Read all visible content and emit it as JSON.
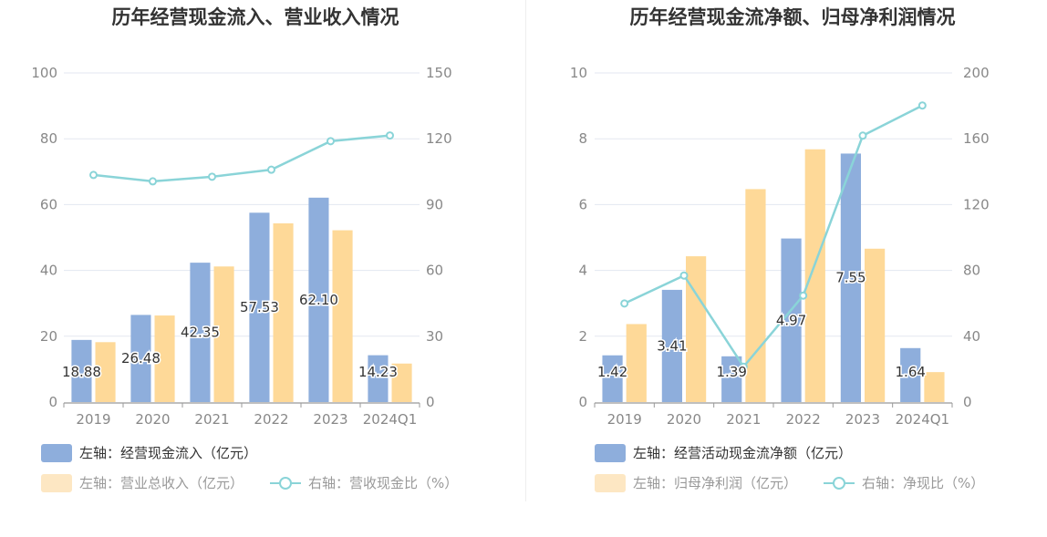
{
  "chart_data": [
    {
      "type": "bar",
      "title": "历年经营现金流入、营业收入情况",
      "categories": [
        "2019",
        "2020",
        "2021",
        "2022",
        "2023",
        "2024Q1"
      ],
      "left_axis": {
        "min": 0,
        "max": 100,
        "ticks": [
          "0",
          "20",
          "40",
          "60",
          "80",
          "100"
        ]
      },
      "right_axis": {
        "min": 0,
        "max": 150,
        "ticks": [
          "0",
          "30",
          "60",
          "90",
          "120",
          "150"
        ]
      },
      "series": [
        {
          "name": "左轴：经营现金流入（亿元）",
          "type": "bar",
          "axis": "left",
          "color": "#8eaedc",
          "values": [
            18.88,
            26.48,
            42.35,
            57.53,
            62.1,
            14.23
          ],
          "labels": [
            "18.88",
            "26.48",
            "42.35",
            "57.53",
            "62.10",
            "14.23"
          ]
        },
        {
          "name": "左轴：营业总收入（亿元）",
          "type": "bar",
          "axis": "left",
          "color": "#fed998",
          "values": [
            18.2,
            26.3,
            41.2,
            54.3,
            52.2,
            11.7
          ]
        },
        {
          "name": "右轴：营收现金比（%）",
          "type": "line",
          "axis": "right",
          "color": "#8ad4d8",
          "values": [
            103.5,
            100.6,
            102.7,
            105.9,
            118.9,
            121.5
          ]
        }
      ],
      "grid": true,
      "legend_position": "bottom-left"
    },
    {
      "type": "bar",
      "title": "历年经营现金流净额、归母净利润情况",
      "categories": [
        "2019",
        "2020",
        "2021",
        "2022",
        "2023",
        "2024Q1"
      ],
      "left_axis": {
        "min": 0,
        "max": 10,
        "ticks": [
          "0",
          "2",
          "4",
          "6",
          "8",
          "10"
        ]
      },
      "right_axis": {
        "min": 0,
        "max": 200,
        "ticks": [
          "0",
          "40",
          "80",
          "120",
          "160",
          "200"
        ]
      },
      "series": [
        {
          "name": "左轴：经营活动现金流净额（亿元）",
          "type": "bar",
          "axis": "left",
          "color": "#8eaedc",
          "values": [
            1.42,
            3.41,
            1.39,
            4.97,
            7.55,
            1.64
          ],
          "labels": [
            "1.42",
            "3.41",
            "1.39",
            "4.97",
            "7.55",
            "1.64"
          ]
        },
        {
          "name": "左轴：归母净利润（亿元）",
          "type": "bar",
          "axis": "left",
          "color": "#fed998",
          "values": [
            2.37,
            4.43,
            6.47,
            7.68,
            4.66,
            0.91
          ]
        },
        {
          "name": "右轴：净现比（%）",
          "type": "line",
          "axis": "right",
          "color": "#8ad4d8",
          "values": [
            59.9,
            76.9,
            21.5,
            64.7,
            161.9,
            180.2
          ]
        }
      ],
      "grid": true,
      "legend_position": "bottom-left"
    }
  ]
}
